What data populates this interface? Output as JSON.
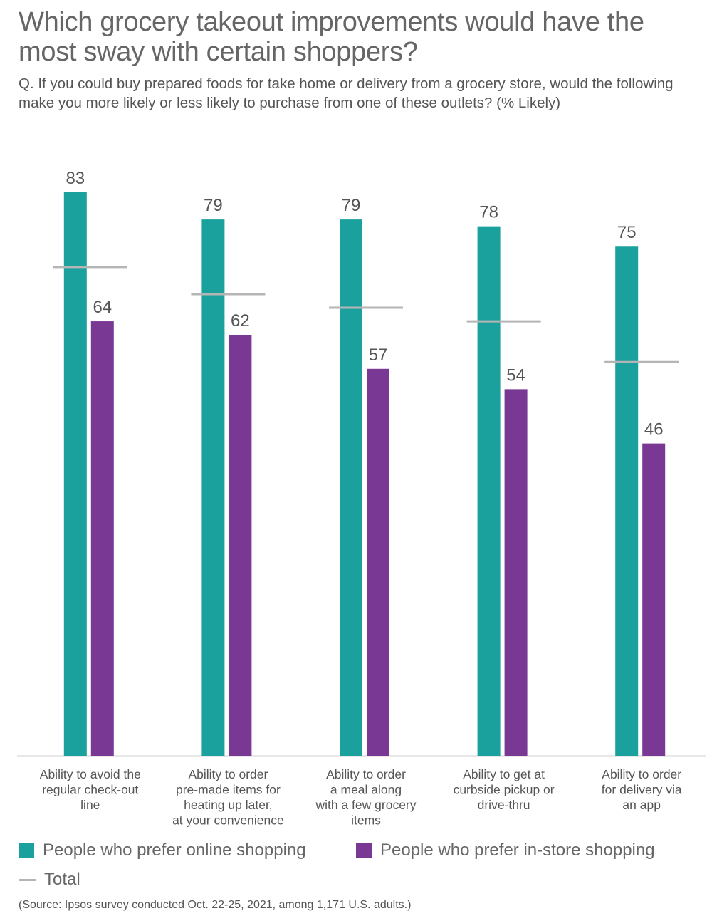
{
  "chart_data": {
    "type": "bar",
    "title": "Which grocery takeout improvements would have the most sway with certain shoppers?",
    "subtitle": "Q. If you could buy prepared foods for take home or delivery from a grocery store, would the following make you more likely or less likely to purchase from one of these outlets? (% Likely)",
    "categories": [
      [
        "Ability to avoid the",
        "regular check-out",
        "line"
      ],
      [
        "Ability to order",
        "pre-made items for",
        "heating up later,",
        "at your convenience"
      ],
      [
        "Ability to order",
        "a meal along",
        "with a few grocery",
        "items"
      ],
      [
        "Ability to get at",
        "curbside pickup or",
        "drive-thru"
      ],
      [
        "Ability to order",
        "for delivery via",
        "an app"
      ]
    ],
    "series": [
      {
        "name": "People who prefer online shopping",
        "color": "#1aa19d",
        "values": [
          83,
          79,
          79,
          78,
          75
        ]
      },
      {
        "name": "People who prefer in-store shopping",
        "color": "#7a3895",
        "values": [
          64,
          62,
          57,
          54,
          46
        ]
      }
    ],
    "total": {
      "name": "Total",
      "color": "#b5b5b5",
      "values": [
        72,
        68,
        66,
        64,
        58
      ]
    },
    "ylim": [
      0,
      100
    ],
    "xlabel": "",
    "ylabel": "",
    "grid": false,
    "source": "(Source: Ipsos survey conducted Oct. 22-25, 2021, among 1,171 U.S. adults.)"
  }
}
